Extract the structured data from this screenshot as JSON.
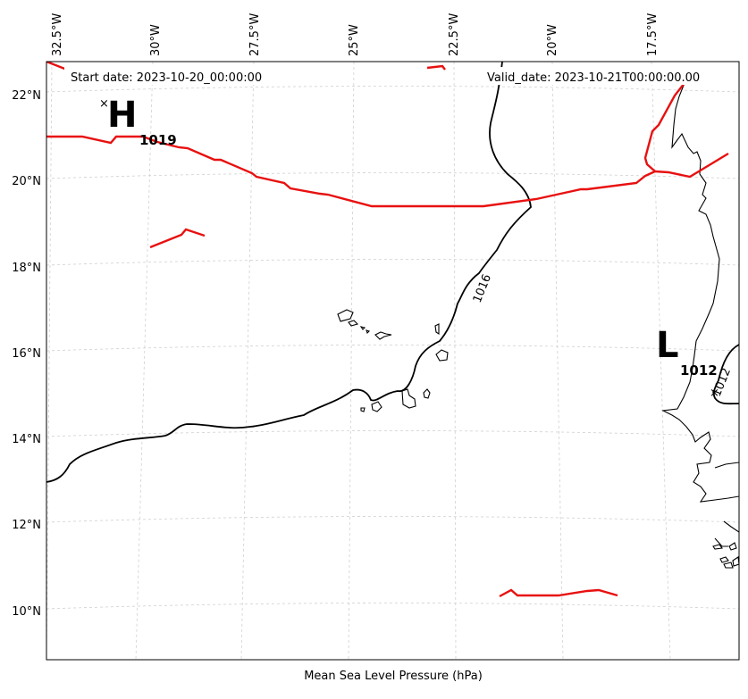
{
  "header": {
    "start_date": "Start date: 2023-10-20_00:00:00",
    "valid_date": "Valid_date: 2023-10-21T00:00:00.00"
  },
  "footer": {
    "xlabel": "Mean Sea Level Pressure (hPa)"
  },
  "axes": {
    "lon_ticks": [
      "32.5°W",
      "30°W",
      "27.5°W",
      "25°W",
      "22.5°W",
      "20°W",
      "17.5°W"
    ],
    "lat_ticks": [
      "22°N",
      "20°N",
      "18°N",
      "16°N",
      "14°N",
      "12°N",
      "10°N"
    ]
  },
  "pressure_systems": [
    {
      "kind": "high",
      "letter": "H",
      "value": "1019",
      "lon": -31.3,
      "lat": 21.8
    },
    {
      "kind": "low",
      "letter": "L",
      "value": "1012",
      "lon": -16.6,
      "lat": 14.9
    }
  ],
  "contour_labels": [
    "1016",
    "1012"
  ],
  "colors": {
    "isobar_main": "#000000",
    "isobar_alt": "#e81010",
    "grid": "#d0d0d0"
  },
  "chart_data": {
    "type": "map",
    "title": "",
    "xlabel": "Mean Sea Level Pressure (hPa)",
    "lon_range": [
      -33,
      -16
    ],
    "lat_range": [
      9,
      22.5
    ],
    "grid": true,
    "isobars": [
      {
        "hPa": 1016,
        "color": "black",
        "labelled": true
      },
      {
        "hPa": 1012,
        "color": "black",
        "labelled": true
      }
    ],
    "centers": [
      {
        "type": "H",
        "hPa": 1019
      },
      {
        "type": "L",
        "hPa": 1012
      }
    ]
  }
}
